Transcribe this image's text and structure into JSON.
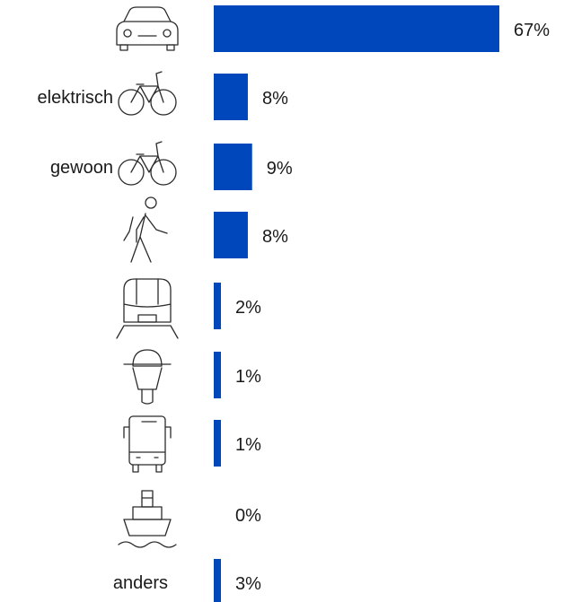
{
  "chart_data": {
    "type": "bar",
    "orientation": "horizontal",
    "categories": [
      {
        "icon": "car-icon",
        "text": ""
      },
      {
        "icon": "bicycle-icon",
        "text": "elektrisch"
      },
      {
        "icon": "bicycle-icon",
        "text": "gewoon"
      },
      {
        "icon": "pedestrian-icon",
        "text": ""
      },
      {
        "icon": "train-icon",
        "text": ""
      },
      {
        "icon": "motorcycle-icon",
        "text": ""
      },
      {
        "icon": "bus-icon",
        "text": ""
      },
      {
        "icon": "boat-icon",
        "text": ""
      },
      {
        "icon": "",
        "text": "anders"
      }
    ],
    "values": [
      67,
      8,
      9,
      8,
      2,
      1,
      1,
      0,
      3
    ],
    "value_labels": [
      "67%",
      "8%",
      "9%",
      "8%",
      "2%",
      "1%",
      "1%",
      "0%",
      "3%"
    ],
    "bar_color": "#0047BB",
    "xlim": [
      0,
      67
    ],
    "title": "",
    "xlabel": "",
    "ylabel": "",
    "legend": "none",
    "grid": false
  }
}
